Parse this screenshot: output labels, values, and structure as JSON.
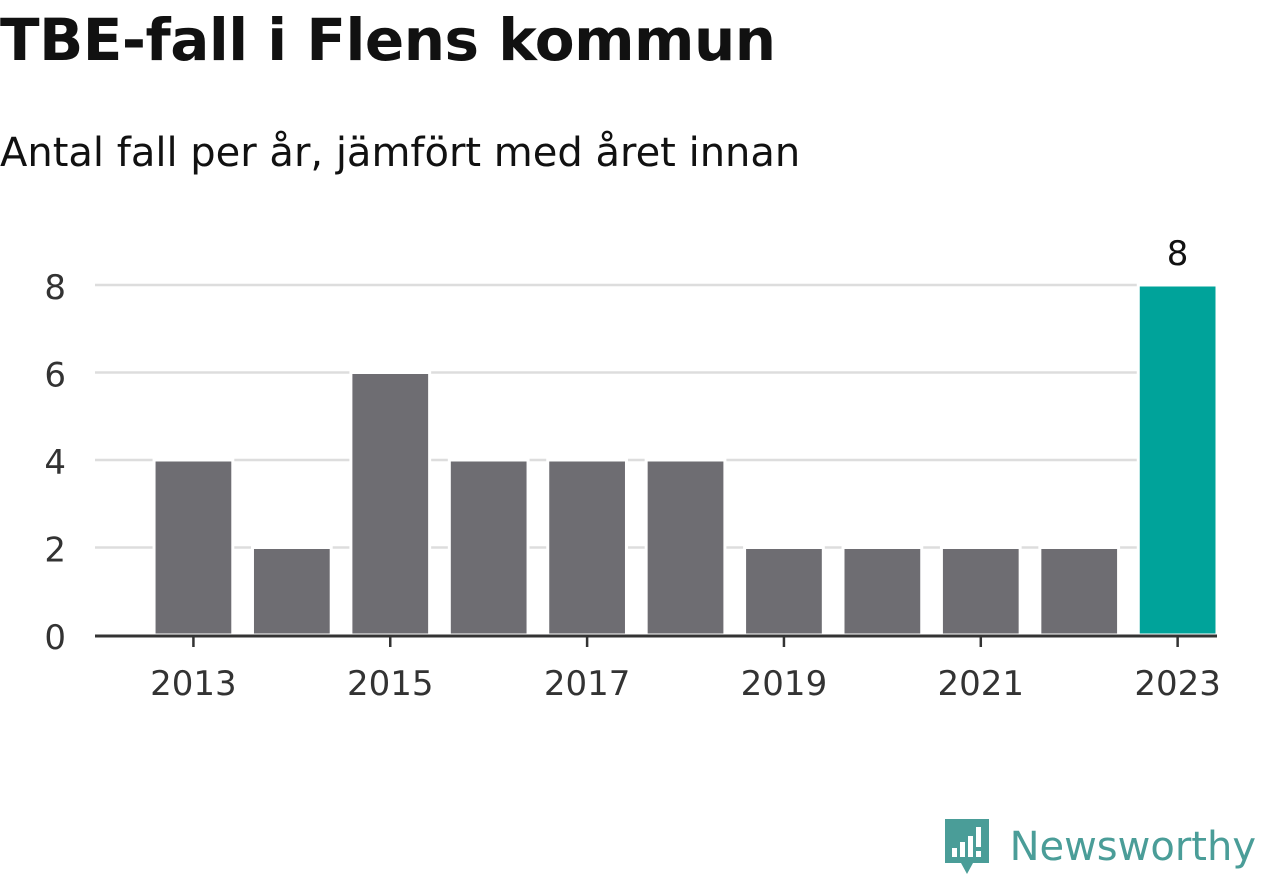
{
  "header": {
    "title": "TBE-fall i Flens kommun",
    "subtitle": "Antal fall per år, jämfört med året innan"
  },
  "branding": {
    "name": "Newsworthy",
    "icon": "bar-chart-speech-bubble-icon",
    "color": "#4a9d98"
  },
  "chart_data": {
    "type": "bar",
    "title": "TBE-fall i Flens kommun",
    "subtitle": "Antal fall per år, jämfört med året innan",
    "xlabel": "",
    "ylabel": "",
    "categories": [
      "2013",
      "2014",
      "2015",
      "2016",
      "2017",
      "2018",
      "2019",
      "2020",
      "2021",
      "2022",
      "2023"
    ],
    "values": [
      4,
      2,
      6,
      4,
      4,
      4,
      2,
      2,
      2,
      2,
      8
    ],
    "x_tick_labels": [
      "2013",
      "2015",
      "2017",
      "2019",
      "2021",
      "2023"
    ],
    "y_ticks": [
      0,
      2,
      4,
      6,
      8
    ],
    "ylim": [
      0,
      8
    ],
    "grid": true,
    "highlight_index": 10,
    "highlight_label": "8",
    "colors": {
      "bar": "#6e6d72",
      "highlight": "#00a39a",
      "grid": "#dddddd",
      "axis": "#333333"
    }
  }
}
